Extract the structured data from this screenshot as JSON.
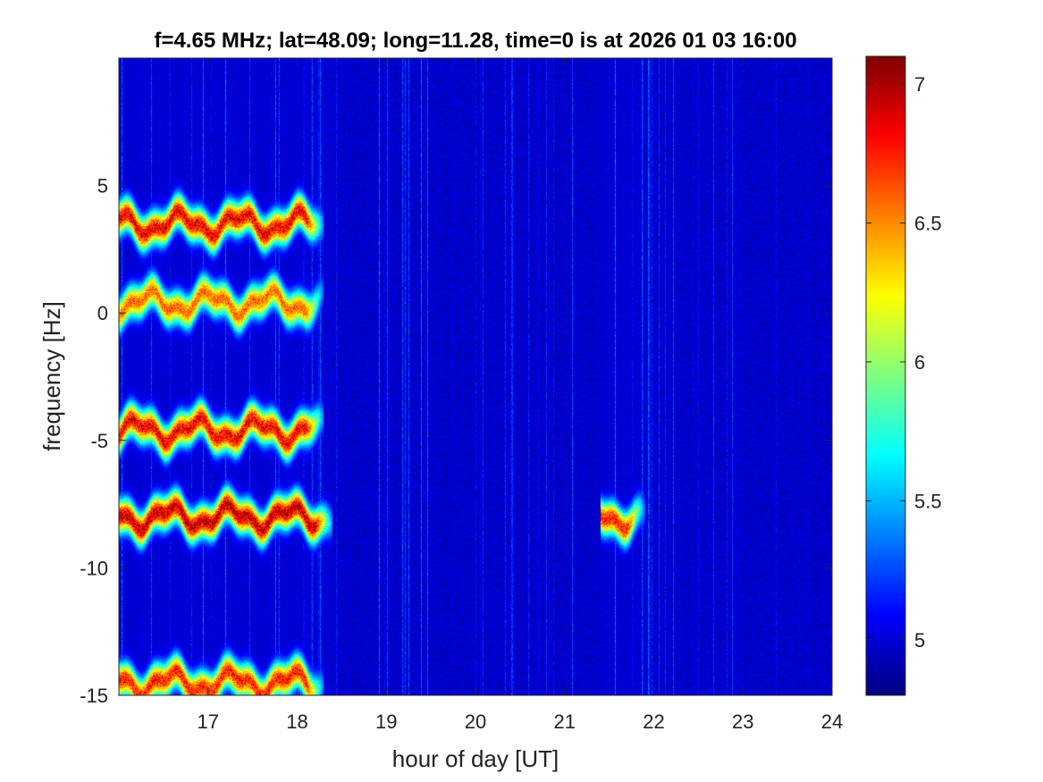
{
  "chart_data": {
    "type": "heatmap",
    "title": "f=4.65 MHz;  lat=48.09; long=11.28, time=0 is at 2026 01 03 16:00",
    "xlabel": "hour of day [UT]",
    "ylabel": "frequency [Hz]",
    "xlim": [
      16.0,
      24.0
    ],
    "ylim": [
      -15,
      10
    ],
    "x_ticks": [
      17,
      18,
      19,
      20,
      21,
      22,
      23,
      24
    ],
    "y_ticks": [
      -15,
      -10,
      -5,
      0,
      5
    ],
    "colorbar": {
      "colormap": "jet",
      "range": [
        4.8,
        7.1
      ],
      "ticks": [
        5,
        5.5,
        6,
        6.5,
        7
      ]
    },
    "traces": [
      {
        "freq_hz": 3.5,
        "x_start": 16.0,
        "x_end": 18.3,
        "peak": 7.0
      },
      {
        "freq_hz": 0.4,
        "x_start": 16.0,
        "x_end": 18.3,
        "peak": 6.7
      },
      {
        "freq_hz": -4.6,
        "x_start": 16.0,
        "x_end": 18.3,
        "peak": 7.0
      },
      {
        "freq_hz": -8.0,
        "x_start": 16.0,
        "x_end": 18.4,
        "peak": 7.1
      },
      {
        "freq_hz": -14.5,
        "x_start": 16.0,
        "x_end": 18.3,
        "peak": 6.9
      },
      {
        "freq_hz": -8.0,
        "x_start": 21.4,
        "x_end": 21.9,
        "peak": 6.9
      }
    ],
    "background_level": 4.95,
    "grid": false
  }
}
